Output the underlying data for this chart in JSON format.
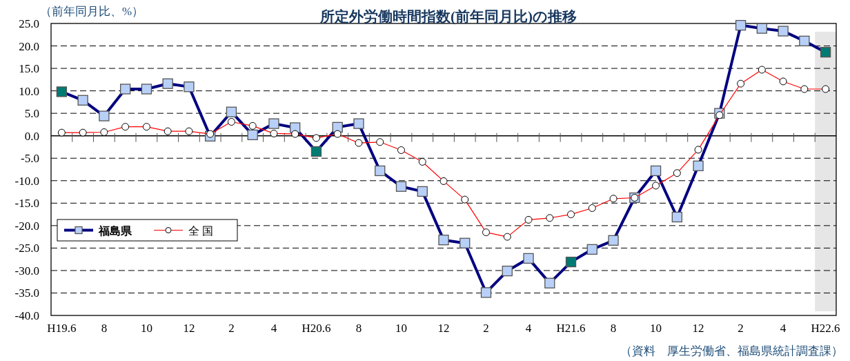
{
  "chart_data": {
    "type": "line",
    "title": "所定外労働時間指数(前年同月比)の推移",
    "ylabel": "（前年同月比、%）",
    "annotations": [
      "（資料　厚生労働省、福島県統計調査課）"
    ],
    "categories": [
      "H19.6",
      null,
      "8",
      null,
      "10",
      null,
      "12",
      null,
      "2",
      null,
      "4",
      null,
      "H20.6",
      null,
      "8",
      null,
      "10",
      null,
      "12",
      null,
      "2",
      null,
      "4",
      null,
      "H21.6",
      null,
      "8",
      null,
      "10",
      null,
      "12",
      null,
      "2",
      null,
      "4",
      null,
      "H22.6"
    ],
    "series": [
      {
        "name": "福島県",
        "color": "#000080",
        "marker": "square",
        "values": [
          9.8,
          7.9,
          4.4,
          10.4,
          10.4,
          11.6,
          10.9,
          -0.1,
          5.3,
          0.2,
          2.7,
          1.8,
          -3.5,
          1.9,
          2.7,
          -7.8,
          -11.3,
          -12.4,
          -23.2,
          -23.9,
          -34.9,
          -30.1,
          -27.3,
          -32.8,
          -28.1,
          -25.3,
          -23.3,
          -13.8,
          -7.8,
          -18.1,
          -6.7,
          5.0,
          24.6,
          23.9,
          23.3,
          21.1,
          18.6
        ],
        "colors": [
          "#007b73",
          "#b8d0f8",
          "#b8d0f8",
          "#b8d0f8",
          "#b8d0f8",
          "#b8d0f8",
          "#b8d0f8",
          "#b8d0f8",
          "#b8d0f8",
          "#b8d0f8",
          "#b8d0f8",
          "#b8d0f8",
          "#007b73",
          "#b8d0f8",
          "#b8d0f8",
          "#b8d0f8",
          "#b8d0f8",
          "#b8d0f8",
          "#b8d0f8",
          "#b8d0f8",
          "#b8d0f8",
          "#b8d0f8",
          "#b8d0f8",
          "#b8d0f8",
          "#007b73",
          "#b8d0f8",
          "#b8d0f8",
          "#b8d0f8",
          "#b8d0f8",
          "#b8d0f8",
          "#b8d0f8",
          "#b8d0f8",
          "#b8d0f8",
          "#b8d0f8",
          "#b8d0f8",
          "#b8d0f8",
          "#007b73"
        ]
      },
      {
        "name": "全 国",
        "color": "#ff0000",
        "marker": "circle",
        "values": [
          0.7,
          0.7,
          0.8,
          2.0,
          2.0,
          1.0,
          1.0,
          0.4,
          3.1,
          2.2,
          0.5,
          0.4,
          -0.5,
          0.4,
          -1.6,
          -1.4,
          -3.2,
          -5.8,
          -10.1,
          -14.2,
          -21.5,
          -22.5,
          -18.7,
          -18.3,
          -17.5,
          -16.1,
          -14.0,
          -13.8,
          -11.1,
          -8.3,
          -3.1,
          4.6,
          11.6,
          14.7,
          12.1,
          10.4,
          10.4
        ]
      }
    ],
    "ylim": [
      -40,
      25
    ],
    "yticks": [
      {
        "value": 25,
        "label": "25.0"
      },
      {
        "value": 20,
        "label": "20.0"
      },
      {
        "value": 15,
        "label": "15.0"
      },
      {
        "value": 10,
        "label": "10.0"
      },
      {
        "value": 5,
        "label": "5.0"
      },
      {
        "value": 0,
        "label": "0.0"
      },
      {
        "value": -5,
        "label": "-5.0"
      },
      {
        "value": -10,
        "label": "-10.0"
      },
      {
        "value": -15,
        "label": "-15.0"
      },
      {
        "value": -20,
        "label": "-20.0"
      },
      {
        "value": -25,
        "label": "-25.0"
      },
      {
        "value": -30,
        "label": "-30.0"
      },
      {
        "value": -35,
        "label": "-35.0"
      },
      {
        "value": -40,
        "label": "-40.0"
      }
    ],
    "bands": [
      {
        "axis": "x",
        "from": "H22.6",
        "to": "H22.6",
        "color": "#e6e6e6"
      }
    ],
    "grid": "y",
    "line_style": "solid",
    "legend": "bottom left"
  }
}
